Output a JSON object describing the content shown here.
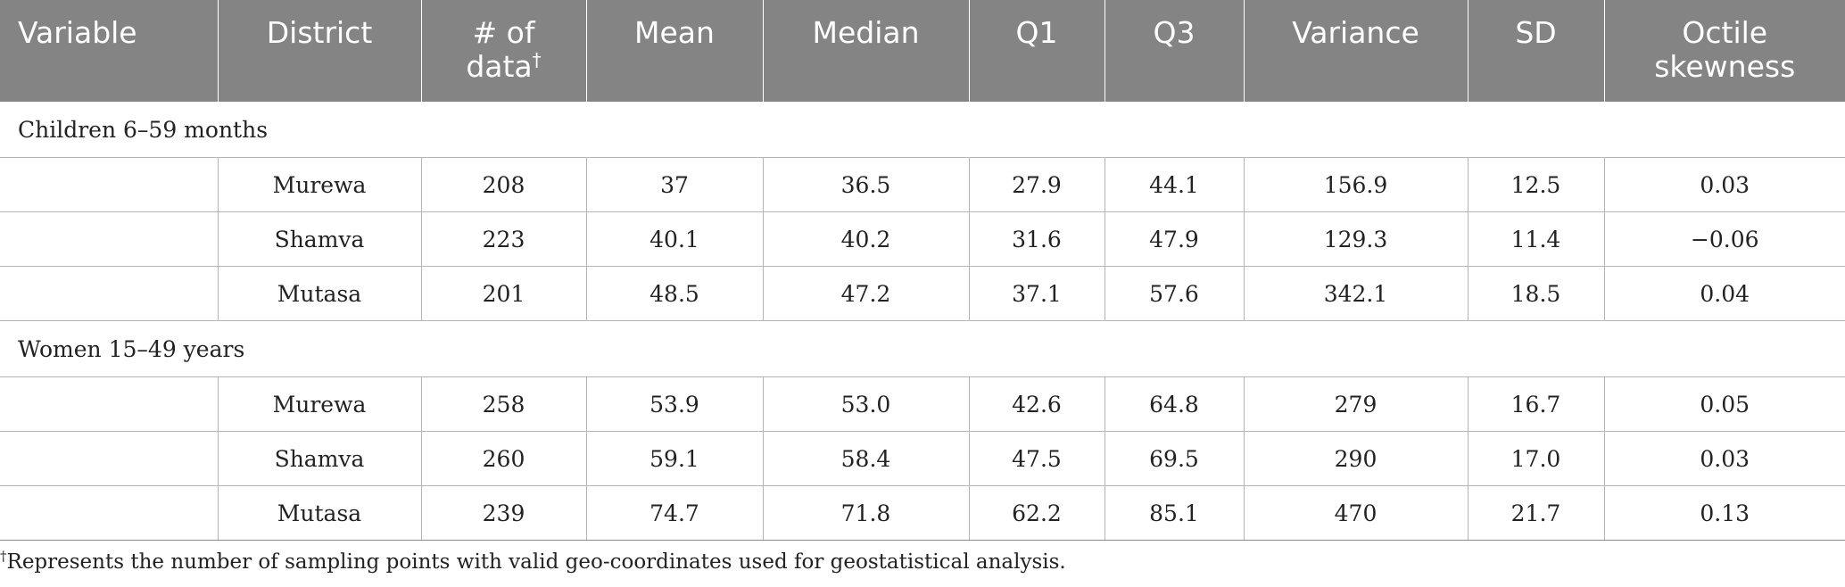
{
  "header": {
    "variable": "Variable",
    "district": "District",
    "num_data_line1": "# of",
    "num_data_line2": "data",
    "num_data_mark": "†",
    "mean": "Mean",
    "median": "Median",
    "q1": "Q1",
    "q3": "Q3",
    "variance": "Variance",
    "sd": "SD",
    "octile_line1": "Octile",
    "octile_line2": "skewness"
  },
  "groups": [
    {
      "label": "Children 6–59 months",
      "rows": [
        {
          "district": "Murewa",
          "n": "208",
          "mean": "37",
          "median": "36.5",
          "q1": "27.9",
          "q3": "44.1",
          "variance": "156.9",
          "sd": "12.5",
          "skew": "0.03"
        },
        {
          "district": "Shamva",
          "n": "223",
          "mean": "40.1",
          "median": "40.2",
          "q1": "31.6",
          "q3": "47.9",
          "variance": "129.3",
          "sd": "11.4",
          "skew": "−0.06"
        },
        {
          "district": "Mutasa",
          "n": "201",
          "mean": "48.5",
          "median": "47.2",
          "q1": "37.1",
          "q3": "57.6",
          "variance": "342.1",
          "sd": "18.5",
          "skew": "0.04"
        }
      ]
    },
    {
      "label": "Women 15–49 years",
      "rows": [
        {
          "district": "Murewa",
          "n": "258",
          "mean": "53.9",
          "median": "53.0",
          "q1": "42.6",
          "q3": "64.8",
          "variance": "279",
          "sd": "16.7",
          "skew": "0.05"
        },
        {
          "district": "Shamva",
          "n": "260",
          "mean": "59.1",
          "median": "58.4",
          "q1": "47.5",
          "q3": "69.5",
          "variance": "290",
          "sd": "17.0",
          "skew": "0.03"
        },
        {
          "district": "Mutasa",
          "n": "239",
          "mean": "74.7",
          "median": "71.8",
          "q1": "62.2",
          "q3": "85.1",
          "variance": "470",
          "sd": "21.7",
          "skew": "0.13"
        }
      ]
    }
  ],
  "footnote": {
    "mark": "†",
    "text": "Represents the number of sampling points with valid geo-coordinates used for geostatistical analysis."
  }
}
